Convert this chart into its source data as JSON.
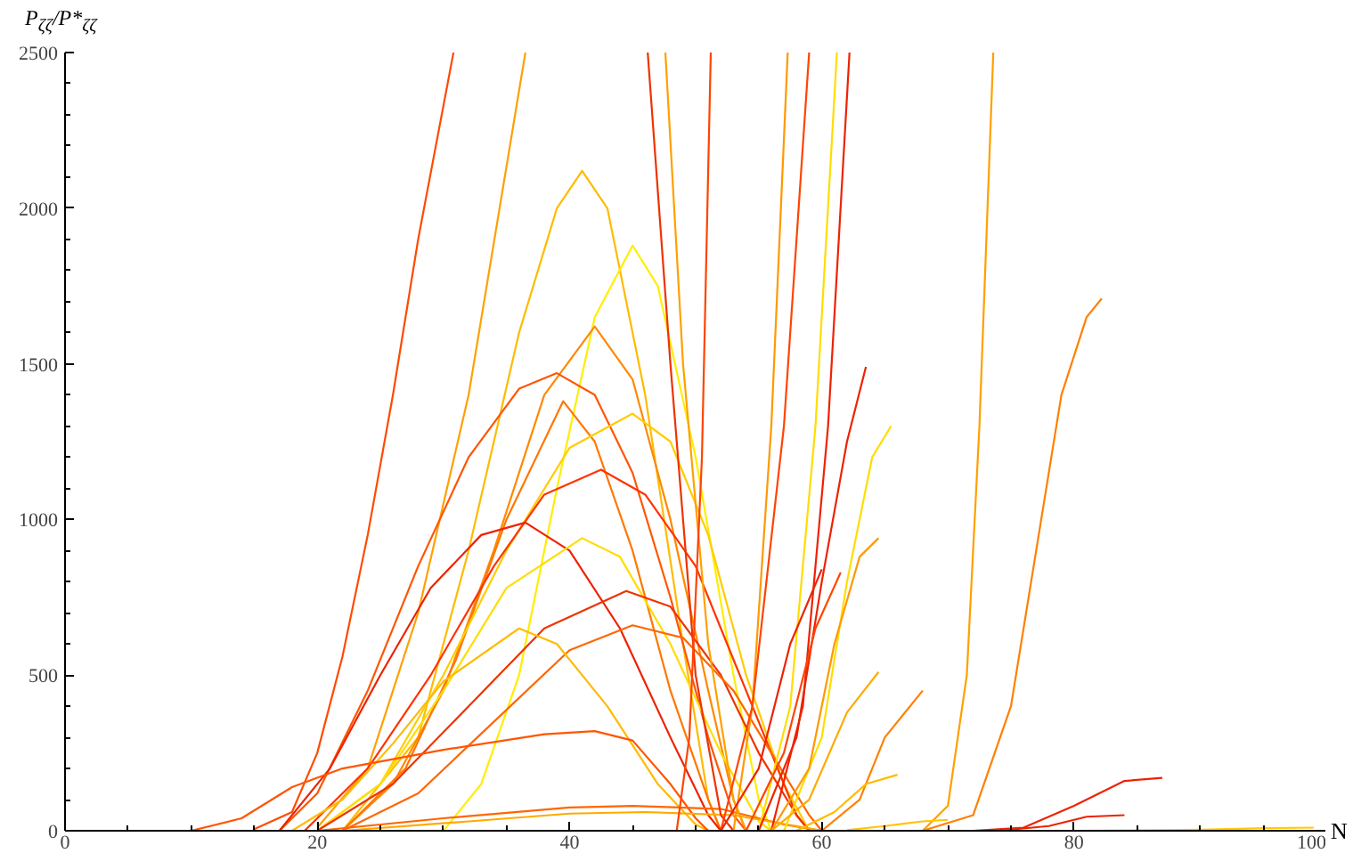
{
  "chart_data": {
    "type": "line",
    "xlabel": "N",
    "ylabel": "P$_{ζζ}$/P*$_{ζζ}$",
    "xlim": [
      0,
      100
    ],
    "ylim": [
      0,
      2500
    ],
    "xticks": [
      0,
      {
        "value": 5,
        "label": null
      },
      {
        "value": 10,
        "label": null
      },
      {
        "value": 15,
        "label": null
      },
      20,
      {
        "value": 25,
        "label": null
      },
      {
        "value": 30,
        "label": null
      },
      {
        "value": 35,
        "label": null
      },
      40,
      {
        "value": 45,
        "label": null
      },
      {
        "value": 50,
        "label": null
      },
      {
        "value": 55,
        "label": null
      },
      60,
      {
        "value": 65,
        "label": null
      },
      {
        "value": 70,
        "label": null
      },
      {
        "value": 75,
        "label": null
      },
      80,
      {
        "value": 85,
        "label": null
      },
      {
        "value": 90,
        "label": null
      },
      {
        "value": 95,
        "label": null
      },
      100
    ],
    "yticks": [
      0,
      {
        "value": 100,
        "label": null
      },
      {
        "value": 200,
        "label": null
      },
      {
        "value": 300,
        "label": null
      },
      {
        "value": 400,
        "label": null
      },
      500,
      {
        "value": 600,
        "label": null
      },
      {
        "value": 700,
        "label": null
      },
      {
        "value": 800,
        "label": null
      },
      {
        "value": 900,
        "label": null
      },
      1000,
      {
        "value": 1100,
        "label": null
      },
      {
        "value": 1200,
        "label": null
      },
      {
        "value": 1300,
        "label": null
      },
      {
        "value": 1400,
        "label": null
      },
      1500,
      {
        "value": 1600,
        "label": null
      },
      {
        "value": 1700,
        "label": null
      },
      {
        "value": 1800,
        "label": null
      },
      {
        "value": 1900,
        "label": null
      },
      2000,
      {
        "value": 2100,
        "label": null
      },
      {
        "value": 2200,
        "label": null
      },
      {
        "value": 2300,
        "label": null
      },
      {
        "value": 2400,
        "label": null
      },
      2500
    ],
    "grid": false,
    "marker": "none",
    "line_style": "solid",
    "series": [
      {
        "color": "#ff4a00",
        "x": [
          15,
          18,
          20,
          22,
          24,
          26,
          28,
          30.8
        ],
        "values": [
          5,
          60,
          250,
          560,
          950,
          1400,
          1900,
          2500
        ]
      },
      {
        "color": "#ffa000",
        "x": [
          20,
          24,
          28,
          32,
          36.5
        ],
        "values": [
          10,
          200,
          700,
          1400,
          2500
        ]
      },
      {
        "color": "#ffbb00",
        "x": [
          22,
          28,
          32,
          36,
          39,
          41,
          43,
          46,
          49,
          51,
          52
        ],
        "values": [
          0,
          300,
          900,
          1600,
          2000,
          2120,
          2000,
          1400,
          600,
          100,
          0
        ]
      },
      {
        "color": "#ffee00",
        "x": [
          30,
          33,
          36,
          39,
          42,
          45,
          47,
          50,
          53,
          55,
          56
        ],
        "values": [
          0,
          150,
          500,
          1100,
          1650,
          1880,
          1750,
          1200,
          500,
          100,
          0
        ]
      },
      {
        "color": "#ff8800",
        "x": [
          22,
          26,
          30,
          34,
          38,
          42,
          45,
          48,
          51,
          53,
          54
        ],
        "values": [
          0,
          150,
          450,
          900,
          1400,
          1620,
          1450,
          1000,
          450,
          100,
          0
        ]
      },
      {
        "color": "#ff5500",
        "x": [
          17,
          20,
          24,
          28,
          32,
          36,
          39,
          42,
          45,
          48,
          51,
          53,
          54
        ],
        "values": [
          0,
          120,
          450,
          850,
          1200,
          1420,
          1470,
          1400,
          1150,
          750,
          300,
          50,
          0
        ]
      },
      {
        "color": "#ff7700",
        "x": [
          22,
          27,
          31,
          35,
          39.5,
          42,
          45,
          48,
          51,
          52
        ],
        "values": [
          0,
          200,
          550,
          1000,
          1380,
          1250,
          900,
          450,
          100,
          0
        ]
      },
      {
        "color": "#ffcc00",
        "x": [
          20,
          25,
          30,
          35,
          40,
          45,
          48,
          51,
          54,
          57,
          59
        ],
        "values": [
          0,
          150,
          500,
          900,
          1230,
          1340,
          1250,
          950,
          500,
          150,
          0
        ]
      },
      {
        "color": "#ff3300",
        "x": [
          19,
          24,
          29,
          34,
          38,
          42.5,
          46,
          50,
          53,
          56,
          58,
          59
        ],
        "values": [
          0,
          200,
          500,
          850,
          1080,
          1160,
          1080,
          850,
          550,
          250,
          50,
          0
        ]
      },
      {
        "color": "#ee2200",
        "x": [
          17,
          21,
          25,
          29,
          33,
          36.5,
          40,
          44,
          48,
          51,
          52
        ],
        "values": [
          0,
          200,
          500,
          780,
          950,
          990,
          900,
          650,
          300,
          50,
          0
        ]
      },
      {
        "color": "#ffdd00",
        "x": [
          20,
          25,
          30,
          35,
          41,
          44,
          48,
          52,
          55,
          56
        ],
        "values": [
          0,
          150,
          450,
          780,
          940,
          880,
          600,
          250,
          30,
          0
        ]
      },
      {
        "color": "#ee3300",
        "x": [
          20,
          26,
          32,
          38,
          44.5,
          48,
          52,
          55,
          58,
          59
        ],
        "values": [
          0,
          150,
          400,
          650,
          770,
          720,
          500,
          250,
          50,
          0
        ]
      },
      {
        "color": "#ff6600",
        "x": [
          22,
          28,
          34,
          40,
          45,
          49,
          53,
          56,
          59,
          60
        ],
        "values": [
          0,
          120,
          350,
          580,
          660,
          620,
          450,
          250,
          50,
          0
        ]
      },
      {
        "color": "#ffbb00",
        "x": [
          18,
          22,
          26,
          30,
          36,
          39,
          43,
          47,
          50,
          51
        ],
        "values": [
          0,
          100,
          280,
          480,
          650,
          600,
          400,
          150,
          20,
          0
        ]
      },
      {
        "color": "#ff5500",
        "x": [
          10,
          14,
          18,
          22,
          30,
          38,
          42,
          45,
          48,
          50,
          51
        ],
        "values": [
          0,
          40,
          140,
          200,
          260,
          310,
          320,
          290,
          150,
          40,
          0
        ]
      },
      {
        "color": "#ff6600",
        "x": [
          20,
          30,
          40,
          45,
          52,
          57,
          60
        ],
        "values": [
          0,
          40,
          75,
          80,
          70,
          20,
          0
        ]
      },
      {
        "color": "#ffaa00",
        "x": [
          22,
          32,
          40,
          46,
          53,
          58,
          60
        ],
        "values": [
          0,
          30,
          55,
          60,
          50,
          15,
          0
        ]
      },
      {
        "color": "#ee3300",
        "x": [
          46.2,
          48,
          50,
          52,
          53
        ],
        "values": [
          2500,
          1500,
          500,
          50,
          0
        ]
      },
      {
        "color": "#ffa000",
        "x": [
          47.6,
          49,
          51,
          53,
          54
        ],
        "values": [
          2500,
          1500,
          600,
          100,
          0
        ]
      },
      {
        "color": "#ff4400",
        "x": [
          48.5,
          49.5,
          50.5,
          51.2
        ],
        "values": [
          0,
          300,
          1200,
          2500
        ]
      },
      {
        "color": "#ff9900",
        "x": [
          53,
          54.5,
          56,
          57.3
        ],
        "values": [
          0,
          400,
          1300,
          2500
        ]
      },
      {
        "color": "#ff4400",
        "x": [
          52,
          54.5,
          57,
          59
        ],
        "values": [
          0,
          400,
          1300,
          2500
        ]
      },
      {
        "color": "#ffdd00",
        "x": [
          55,
          57.5,
          59.5,
          61.2
        ],
        "values": [
          0,
          400,
          1300,
          2500
        ]
      },
      {
        "color": "#ee2200",
        "x": [
          56,
          58.5,
          60.5,
          62.2
        ],
        "values": [
          0,
          400,
          1300,
          2500
        ]
      },
      {
        "color": "#ffa000",
        "x": [
          68,
          70,
          71.5,
          72.5,
          73.6
        ],
        "values": [
          0,
          80,
          500,
          1300,
          2500
        ]
      },
      {
        "color": "#ff8000",
        "x": [
          68,
          72,
          75,
          77,
          79,
          81,
          82.2
        ],
        "values": [
          0,
          50,
          400,
          900,
          1400,
          1650,
          1710
        ]
      },
      {
        "color": "#ee2200",
        "x": [
          55,
          58,
          60,
          62,
          63.5
        ],
        "values": [
          0,
          300,
          800,
          1250,
          1490
        ]
      },
      {
        "color": "#ffdd00",
        "x": [
          57,
          60,
          62,
          64,
          65.5
        ],
        "values": [
          0,
          300,
          800,
          1200,
          1300
        ]
      },
      {
        "color": "#ff9900",
        "x": [
          56,
          59,
          61,
          63,
          64.5
        ],
        "values": [
          0,
          200,
          600,
          880,
          940
        ]
      },
      {
        "color": "#ee2200",
        "x": [
          52,
          55,
          57.5,
          60
        ],
        "values": [
          0,
          200,
          600,
          840
        ]
      },
      {
        "color": "#ff4400",
        "x": [
          54,
          57,
          59.5,
          61.5
        ],
        "values": [
          0,
          250,
          650,
          830
        ]
      },
      {
        "color": "#ff8000",
        "x": [
          60,
          63,
          65,
          68
        ],
        "values": [
          0,
          100,
          300,
          450
        ]
      },
      {
        "color": "#ffaa00",
        "x": [
          56,
          59,
          62,
          64.5
        ],
        "values": [
          0,
          100,
          380,
          510
        ]
      },
      {
        "color": "#ffbb00",
        "x": [
          58,
          61,
          63.5,
          66
        ],
        "values": [
          0,
          60,
          150,
          180
        ]
      },
      {
        "color": "#ee2200",
        "x": [
          72,
          76,
          80,
          84,
          87
        ],
        "values": [
          0,
          10,
          80,
          160,
          170
        ]
      },
      {
        "color": "#ee2200",
        "x": [
          74,
          78,
          81,
          84
        ],
        "values": [
          0,
          15,
          45,
          50
        ]
      },
      {
        "color": "#ffc400",
        "x": [
          62,
          65,
          68,
          70
        ],
        "values": [
          2,
          15,
          30,
          35
        ]
      },
      {
        "color": "#ffcc00",
        "x": [
          80,
          90,
          95,
          99
        ],
        "values": [
          0,
          3,
          8,
          10
        ]
      }
    ]
  }
}
